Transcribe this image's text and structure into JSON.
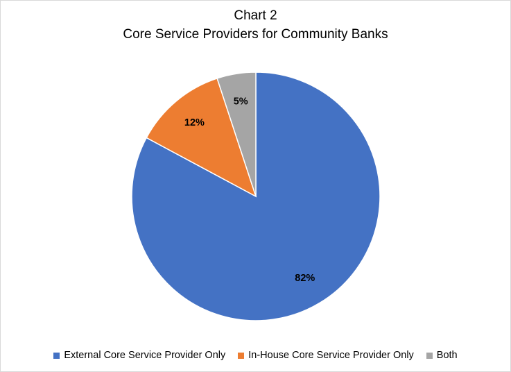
{
  "chart_data": {
    "type": "pie",
    "title": "Chart 2",
    "subtitle": "Core Service Providers for Community Banks",
    "categories": [
      "External Core Service Provider Only",
      "In-House Core Service Provider Only",
      "Both"
    ],
    "values": [
      82,
      12,
      5
    ],
    "data_labels": [
      "82%",
      "12%",
      "5%"
    ],
    "colors": [
      "#4472c4",
      "#ed7d31",
      "#a5a5a5"
    ],
    "legend_position": "bottom"
  }
}
